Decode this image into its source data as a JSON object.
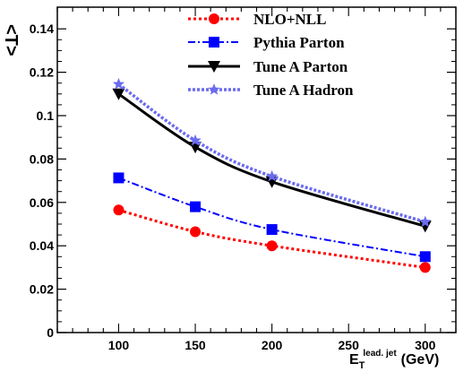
{
  "chart_data": {
    "type": "line",
    "xlabel": {
      "main": "E",
      "sub": "T",
      "sup": "lead. jet",
      "unit": "(GeV)"
    },
    "ylabel": "<T>",
    "xlim": [
      60,
      320
    ],
    "ylim": [
      0,
      0.15
    ],
    "xticks": [
      100,
      150,
      200,
      250,
      300
    ],
    "yticks": [
      0,
      0.02,
      0.04,
      0.06,
      0.08,
      0.1,
      0.12,
      0.14
    ],
    "ytick_labels": [
      "0",
      "0.02",
      "0.04",
      "0.06",
      "0.08",
      "0.1",
      "0.12",
      "0.14"
    ],
    "x": [
      100,
      150,
      200,
      300
    ],
    "series": [
      {
        "name": "NLO+NLL",
        "values": [
          0.0565,
          0.0465,
          0.04,
          0.03
        ],
        "color": "#ff0000",
        "dash": "3,3",
        "marker": "circle",
        "width": 3
      },
      {
        "name": "Pythia Parton",
        "values": [
          0.0713,
          0.058,
          0.0475,
          0.035
        ],
        "color": "#0000ff",
        "dash": "8,3,2,3",
        "marker": "square",
        "width": 2
      },
      {
        "name": "Tune A Parton",
        "values": [
          0.11,
          0.0855,
          0.0695,
          0.049
        ],
        "color": "#000000",
        "dash": "",
        "marker": "triangle-down",
        "width": 3
      },
      {
        "name": "Tune A Hadron",
        "values": [
          0.1145,
          0.0885,
          0.072,
          0.051
        ],
        "color": "#6b6bef",
        "dash": "3,2",
        "marker": "star",
        "width": 3.5
      }
    ],
    "legend_position": "top-right",
    "grid": false
  }
}
